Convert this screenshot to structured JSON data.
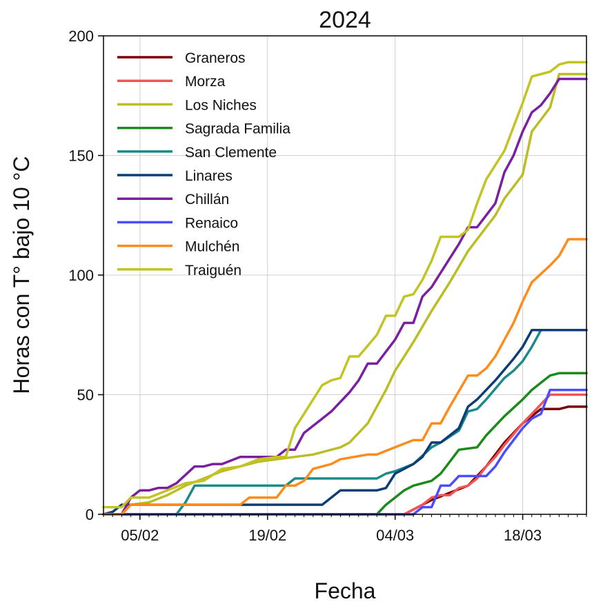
{
  "chart_data": {
    "type": "line",
    "title": "2024",
    "xlabel": "Fecha",
    "ylabel": "Horas con T° bajo 10 °C",
    "ylim": [
      0,
      200
    ],
    "yticks": [
      0,
      50,
      100,
      150,
      200
    ],
    "xlim": [
      "2024-02-01",
      "2024-03-25"
    ],
    "xticks": [
      {
        "date": "2024-02-05",
        "label": "05/02"
      },
      {
        "date": "2024-02-19",
        "label": "19/02"
      },
      {
        "date": "2024-03-04",
        "label": "04/03"
      },
      {
        "date": "2024-03-18",
        "label": "18/03"
      }
    ],
    "grid": true,
    "legend_position": "top-left",
    "series": [
      {
        "name": "Graneros",
        "color": "#7a0000",
        "points": [
          [
            "2024-02-01",
            0
          ],
          [
            "2024-03-05",
            0
          ],
          [
            "2024-03-06",
            2
          ],
          [
            "2024-03-08",
            6
          ],
          [
            "2024-03-10",
            9
          ],
          [
            "2024-03-12",
            12
          ],
          [
            "2024-03-14",
            20
          ],
          [
            "2024-03-16",
            30
          ],
          [
            "2024-03-18",
            38
          ],
          [
            "2024-03-20",
            44
          ],
          [
            "2024-03-22",
            44
          ],
          [
            "2024-03-23",
            45
          ],
          [
            "2024-03-25",
            45
          ]
        ]
      },
      {
        "name": "Morza",
        "color": "#f25555",
        "points": [
          [
            "2024-02-01",
            0
          ],
          [
            "2024-03-05",
            0
          ],
          [
            "2024-03-06",
            2
          ],
          [
            "2024-03-07",
            4
          ],
          [
            "2024-03-08",
            7
          ],
          [
            "2024-03-09",
            8
          ],
          [
            "2024-03-10",
            8
          ],
          [
            "2024-03-11",
            11
          ],
          [
            "2024-03-12",
            12
          ],
          [
            "2024-03-13",
            15
          ],
          [
            "2024-03-14",
            20
          ],
          [
            "2024-03-15",
            24
          ],
          [
            "2024-03-16",
            29
          ],
          [
            "2024-03-18",
            38
          ],
          [
            "2024-03-19",
            42
          ],
          [
            "2024-03-20",
            46
          ],
          [
            "2024-03-21",
            50
          ],
          [
            "2024-03-25",
            50
          ]
        ]
      },
      {
        "name": "Los Niches",
        "color": "#bcbd22",
        "points": [
          [
            "2024-02-01",
            0
          ],
          [
            "2024-02-03",
            0
          ],
          [
            "2024-02-04",
            4
          ],
          [
            "2024-02-06",
            5
          ],
          [
            "2024-02-08",
            8
          ],
          [
            "2024-02-10",
            12
          ],
          [
            "2024-02-12",
            15
          ],
          [
            "2024-02-14",
            18
          ],
          [
            "2024-02-16",
            20
          ],
          [
            "2024-02-18",
            22
          ],
          [
            "2024-02-20",
            23
          ],
          [
            "2024-02-22",
            24
          ],
          [
            "2024-02-24",
            25
          ],
          [
            "2024-02-26",
            27
          ],
          [
            "2024-02-27",
            28
          ],
          [
            "2024-02-28",
            30
          ],
          [
            "2024-03-01",
            38
          ],
          [
            "2024-03-03",
            52
          ],
          [
            "2024-03-04",
            60
          ],
          [
            "2024-03-06",
            72
          ],
          [
            "2024-03-08",
            85
          ],
          [
            "2024-03-10",
            97
          ],
          [
            "2024-03-12",
            110
          ],
          [
            "2024-03-14",
            120
          ],
          [
            "2024-03-15",
            125
          ],
          [
            "2024-03-16",
            132
          ],
          [
            "2024-03-18",
            142
          ],
          [
            "2024-03-19",
            160
          ],
          [
            "2024-03-20",
            165
          ],
          [
            "2024-03-21",
            170
          ],
          [
            "2024-03-22",
            184
          ],
          [
            "2024-03-25",
            184
          ]
        ]
      },
      {
        "name": "Sagrada Familia",
        "color": "#1a8a1a",
        "points": [
          [
            "2024-02-01",
            0
          ],
          [
            "2024-03-02",
            0
          ],
          [
            "2024-03-03",
            4
          ],
          [
            "2024-03-04",
            7
          ],
          [
            "2024-03-05",
            10
          ],
          [
            "2024-03-06",
            12
          ],
          [
            "2024-03-08",
            14
          ],
          [
            "2024-03-09",
            17
          ],
          [
            "2024-03-10",
            22
          ],
          [
            "2024-03-11",
            27
          ],
          [
            "2024-03-13",
            28
          ],
          [
            "2024-03-14",
            33
          ],
          [
            "2024-03-16",
            41
          ],
          [
            "2024-03-18",
            48
          ],
          [
            "2024-03-19",
            52
          ],
          [
            "2024-03-20",
            55
          ],
          [
            "2024-03-21",
            58
          ],
          [
            "2024-03-22",
            59
          ],
          [
            "2024-03-25",
            59
          ]
        ]
      },
      {
        "name": "San Clemente",
        "color": "#1a8a8a",
        "points": [
          [
            "2024-02-01",
            0
          ],
          [
            "2024-02-09",
            0
          ],
          [
            "2024-02-10",
            5
          ],
          [
            "2024-02-11",
            12
          ],
          [
            "2024-02-21",
            12
          ],
          [
            "2024-02-22",
            15
          ],
          [
            "2024-03-02",
            15
          ],
          [
            "2024-03-03",
            17
          ],
          [
            "2024-03-04",
            18
          ],
          [
            "2024-03-06",
            21
          ],
          [
            "2024-03-08",
            28
          ],
          [
            "2024-03-09",
            30
          ],
          [
            "2024-03-11",
            35
          ],
          [
            "2024-03-12",
            43
          ],
          [
            "2024-03-13",
            44
          ],
          [
            "2024-03-14",
            48
          ],
          [
            "2024-03-16",
            57
          ],
          [
            "2024-03-17",
            60
          ],
          [
            "2024-03-18",
            64
          ],
          [
            "2024-03-19",
            70
          ],
          [
            "2024-03-20",
            77
          ],
          [
            "2024-03-25",
            77
          ]
        ]
      },
      {
        "name": "Linares",
        "color": "#0c3d75",
        "points": [
          [
            "2024-02-01",
            0
          ],
          [
            "2024-02-02",
            1
          ],
          [
            "2024-02-03",
            4
          ],
          [
            "2024-02-25",
            4
          ],
          [
            "2024-02-27",
            10
          ],
          [
            "2024-03-02",
            10
          ],
          [
            "2024-03-03",
            11
          ],
          [
            "2024-03-04",
            17
          ],
          [
            "2024-03-06",
            21
          ],
          [
            "2024-03-07",
            24
          ],
          [
            "2024-03-08",
            30
          ],
          [
            "2024-03-09",
            30
          ],
          [
            "2024-03-11",
            36
          ],
          [
            "2024-03-12",
            45
          ],
          [
            "2024-03-13",
            48
          ],
          [
            "2024-03-15",
            56
          ],
          [
            "2024-03-17",
            65
          ],
          [
            "2024-03-18",
            70
          ],
          [
            "2024-03-19",
            77
          ],
          [
            "2024-03-25",
            77
          ]
        ]
      },
      {
        "name": "Chillán",
        "color": "#7b1fa2",
        "points": [
          [
            "2024-02-01",
            0
          ],
          [
            "2024-02-03",
            0
          ],
          [
            "2024-02-04",
            7
          ],
          [
            "2024-02-05",
            10
          ],
          [
            "2024-02-06",
            10
          ],
          [
            "2024-02-07",
            11
          ],
          [
            "2024-02-08",
            11
          ],
          [
            "2024-02-09",
            13
          ],
          [
            "2024-02-11",
            20
          ],
          [
            "2024-02-12",
            20
          ],
          [
            "2024-02-13",
            21
          ],
          [
            "2024-02-14",
            21
          ],
          [
            "2024-02-16",
            24
          ],
          [
            "2024-02-20",
            24
          ],
          [
            "2024-02-21",
            27
          ],
          [
            "2024-02-22",
            27
          ],
          [
            "2024-02-23",
            34
          ],
          [
            "2024-02-24",
            37
          ],
          [
            "2024-02-25",
            40
          ],
          [
            "2024-02-26",
            43
          ],
          [
            "2024-02-28",
            51
          ],
          [
            "2024-02-29",
            56
          ],
          [
            "2024-03-01",
            63
          ],
          [
            "2024-03-02",
            63
          ],
          [
            "2024-03-04",
            73
          ],
          [
            "2024-03-05",
            80
          ],
          [
            "2024-03-06",
            80
          ],
          [
            "2024-03-07",
            91
          ],
          [
            "2024-03-08",
            95
          ],
          [
            "2024-03-10",
            107
          ],
          [
            "2024-03-11",
            113
          ],
          [
            "2024-03-12",
            120
          ],
          [
            "2024-03-13",
            120
          ],
          [
            "2024-03-15",
            130
          ],
          [
            "2024-03-16",
            143
          ],
          [
            "2024-03-17",
            150
          ],
          [
            "2024-03-18",
            160
          ],
          [
            "2024-03-19",
            168
          ],
          [
            "2024-03-20",
            171
          ],
          [
            "2024-03-21",
            176
          ],
          [
            "2024-03-22",
            182
          ],
          [
            "2024-03-25",
            182
          ]
        ]
      },
      {
        "name": "Renaico",
        "color": "#4b4bff",
        "points": [
          [
            "2024-02-01",
            0
          ],
          [
            "2024-03-06",
            0
          ],
          [
            "2024-03-07",
            3
          ],
          [
            "2024-03-08",
            3
          ],
          [
            "2024-03-09",
            12
          ],
          [
            "2024-03-10",
            12
          ],
          [
            "2024-03-11",
            16
          ],
          [
            "2024-03-14",
            16
          ],
          [
            "2024-03-15",
            20
          ],
          [
            "2024-03-16",
            26
          ],
          [
            "2024-03-17",
            31
          ],
          [
            "2024-03-18",
            36
          ],
          [
            "2024-03-19",
            40
          ],
          [
            "2024-03-20",
            42
          ],
          [
            "2024-03-21",
            52
          ],
          [
            "2024-03-25",
            52
          ]
        ]
      },
      {
        "name": "Mulchén",
        "color": "#ff8c1a",
        "points": [
          [
            "2024-02-01",
            0
          ],
          [
            "2024-02-03",
            0
          ],
          [
            "2024-02-04",
            4
          ],
          [
            "2024-02-16",
            4
          ],
          [
            "2024-02-17",
            7
          ],
          [
            "2024-02-20",
            7
          ],
          [
            "2024-02-21",
            12
          ],
          [
            "2024-02-22",
            12
          ],
          [
            "2024-02-23",
            14
          ],
          [
            "2024-02-24",
            19
          ],
          [
            "2024-02-26",
            21
          ],
          [
            "2024-02-27",
            23
          ],
          [
            "2024-03-01",
            25
          ],
          [
            "2024-03-02",
            25
          ],
          [
            "2024-03-04",
            28
          ],
          [
            "2024-03-06",
            31
          ],
          [
            "2024-03-07",
            31
          ],
          [
            "2024-03-08",
            38
          ],
          [
            "2024-03-09",
            38
          ],
          [
            "2024-03-10",
            45
          ],
          [
            "2024-03-12",
            58
          ],
          [
            "2024-03-13",
            58
          ],
          [
            "2024-03-14",
            61
          ],
          [
            "2024-03-15",
            66
          ],
          [
            "2024-03-16",
            73
          ],
          [
            "2024-03-17",
            80
          ],
          [
            "2024-03-18",
            89
          ],
          [
            "2024-03-19",
            97
          ],
          [
            "2024-03-21",
            104
          ],
          [
            "2024-03-22",
            108
          ],
          [
            "2024-03-23",
            115
          ],
          [
            "2024-03-25",
            115
          ]
        ]
      },
      {
        "name": "Traiguén",
        "color": "#c2c424",
        "points": [
          [
            "2024-02-01",
            3
          ],
          [
            "2024-02-03",
            3
          ],
          [
            "2024-02-04",
            7
          ],
          [
            "2024-02-06",
            7
          ],
          [
            "2024-02-08",
            10
          ],
          [
            "2024-02-10",
            13
          ],
          [
            "2024-02-12",
            14
          ],
          [
            "2024-02-14",
            19
          ],
          [
            "2024-02-16",
            20
          ],
          [
            "2024-02-18",
            23
          ],
          [
            "2024-02-20",
            24
          ],
          [
            "2024-02-21",
            24
          ],
          [
            "2024-02-22",
            36
          ],
          [
            "2024-02-23",
            42
          ],
          [
            "2024-02-24",
            48
          ],
          [
            "2024-02-25",
            54
          ],
          [
            "2024-02-26",
            56
          ],
          [
            "2024-02-27",
            57
          ],
          [
            "2024-02-28",
            66
          ],
          [
            "2024-02-29",
            66
          ],
          [
            "2024-03-02",
            75
          ],
          [
            "2024-03-03",
            83
          ],
          [
            "2024-03-04",
            83
          ],
          [
            "2024-03-05",
            91
          ],
          [
            "2024-03-06",
            92
          ],
          [
            "2024-03-07",
            98
          ],
          [
            "2024-03-08",
            106
          ],
          [
            "2024-03-09",
            116
          ],
          [
            "2024-03-11",
            116
          ],
          [
            "2024-03-12",
            119
          ],
          [
            "2024-03-13",
            130
          ],
          [
            "2024-03-14",
            140
          ],
          [
            "2024-03-16",
            152
          ],
          [
            "2024-03-17",
            162
          ],
          [
            "2024-03-18",
            172
          ],
          [
            "2024-03-19",
            183
          ],
          [
            "2024-03-21",
            185
          ],
          [
            "2024-03-22",
            188
          ],
          [
            "2024-03-23",
            189
          ],
          [
            "2024-03-25",
            189
          ]
        ]
      }
    ]
  }
}
